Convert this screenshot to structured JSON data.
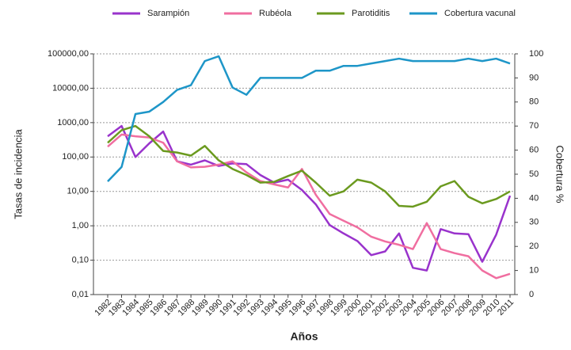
{
  "chart_data": {
    "type": "line",
    "x_label": "Años",
    "y_label": "Tasas de incidencia",
    "y2_label": "Cobertura %",
    "categories": [
      "1982",
      "1983",
      "1984",
      "1985",
      "1986",
      "1987",
      "1988",
      "1989",
      "1990",
      "1991",
      "1992",
      "1993",
      "1994",
      "1995",
      "1996",
      "1997",
      "1998",
      "1999",
      "2000",
      "2001",
      "2002",
      "2003",
      "2004",
      "2005",
      "2006",
      "2007",
      "2008",
      "2009",
      "2010",
      "2011"
    ],
    "y_log": true,
    "grid": true,
    "legend": "top",
    "ylim": [
      0.01,
      100000
    ],
    "yticks": [
      {
        "value": 0.01,
        "label": "0,01"
      },
      {
        "value": 0.1,
        "label": "0,10"
      },
      {
        "value": 1,
        "label": "1,00"
      },
      {
        "value": 10,
        "label": "10,00"
      },
      {
        "value": 100,
        "label": "100,00"
      },
      {
        "value": 1000,
        "label": "1000,00"
      },
      {
        "value": 10000,
        "label": "10000,00"
      },
      {
        "value": 100000,
        "label": "100000,00"
      }
    ],
    "y2lim": [
      0,
      100
    ],
    "y2ticks": [
      0,
      10,
      20,
      30,
      40,
      50,
      60,
      70,
      80,
      90,
      100
    ],
    "series": [
      {
        "name": "Sarampión",
        "color": "#9933cc",
        "values": [
          400,
          800,
          100,
          250,
          550,
          75,
          60,
          80,
          55,
          65,
          62,
          30,
          18,
          22,
          11,
          4.2,
          1.05,
          0.6,
          0.36,
          0.14,
          0.18,
          0.6,
          0.06,
          0.05,
          0.8,
          0.6,
          0.57,
          0.09,
          0.55,
          7.5
        ]
      },
      {
        "name": "Rubéola",
        "color": "#f06ea0",
        "values": [
          200,
          450,
          400,
          370,
          260,
          75,
          50,
          52,
          60,
          75,
          36,
          20,
          16,
          13,
          45,
          8,
          2.2,
          1.4,
          0.9,
          0.48,
          0.35,
          0.28,
          0.21,
          1.2,
          0.21,
          0.16,
          0.13,
          0.05,
          0.03,
          0.04
        ]
      },
      {
        "name": "Parotiditis",
        "color": "#6b9a1f",
        "values": [
          260,
          600,
          800,
          400,
          150,
          135,
          110,
          210,
          80,
          45,
          30,
          18,
          19,
          28,
          40,
          18,
          7.5,
          10,
          22,
          18,
          10,
          3.8,
          3.6,
          5,
          14,
          20,
          7,
          4.5,
          6,
          10
        ]
      },
      {
        "name": "Cobertura vacunal",
        "color": "#1e96c8",
        "axis": "y2",
        "values": [
          47,
          53,
          75,
          76,
          80,
          85,
          87,
          97,
          99,
          86,
          83,
          90,
          90,
          90,
          90,
          93,
          93,
          95,
          95,
          96,
          97,
          98,
          97,
          97,
          97,
          97,
          98,
          97,
          98,
          96
        ]
      }
    ]
  }
}
